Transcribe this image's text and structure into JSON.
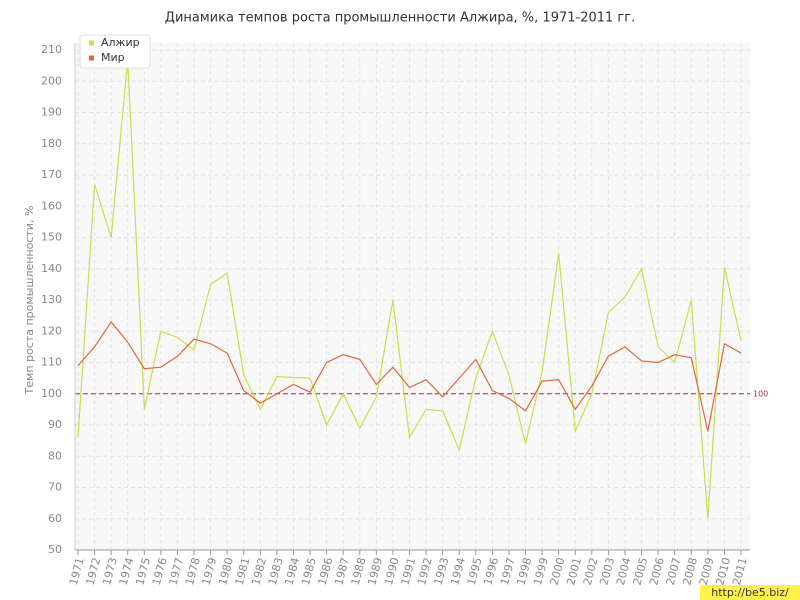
{
  "chart_data": {
    "type": "line",
    "title": "Динамика темпов роста промышленности Алжира, %, 1971-2011 гг.",
    "y_label": "Темп роста промышленности, %",
    "categories": [
      "1971",
      "1972",
      "1973",
      "1974",
      "1975",
      "1976",
      "1977",
      "1978",
      "1979",
      "1980",
      "1981",
      "1982",
      "1983",
      "1984",
      "1985",
      "1986",
      "1987",
      "1988",
      "1989",
      "1990",
      "1991",
      "1992",
      "1993",
      "1994",
      "1995",
      "1996",
      "1997",
      "1998",
      "1999",
      "2000",
      "2001",
      "2002",
      "2003",
      "2004",
      "2005",
      "2006",
      "2007",
      "2008",
      "2009",
      "2010",
      "2011"
    ],
    "series": [
      {
        "name": "Алжир",
        "color": "#c5e04e",
        "values": [
          86,
          167,
          150,
          207,
          95,
          120,
          118,
          114,
          135,
          138.5,
          106,
          95,
          105.5,
          105.2,
          105,
          90,
          100,
          89,
          99,
          130,
          86,
          95,
          94.5,
          82,
          105,
          120,
          106,
          84,
          107,
          145,
          88,
          100,
          126,
          131,
          140,
          115,
          110,
          130,
          60,
          140.5,
          117
        ]
      },
      {
        "name": "Мир",
        "color": "#e0683c",
        "values": [
          109,
          115,
          123,
          116.5,
          108,
          108.5,
          112,
          117.5,
          116,
          113,
          101,
          97,
          100,
          103,
          100.5,
          110,
          112.5,
          111,
          103,
          108.5,
          102,
          104.5,
          99,
          105,
          111,
          101,
          98.5,
          94.5,
          104,
          104.5,
          95,
          102.5,
          112,
          115,
          110.5,
          110,
          112.5,
          111.5,
          88,
          116,
          113
        ]
      }
    ],
    "ylim": [
      50,
      210
    ],
    "yticks": [
      50,
      60,
      70,
      80,
      90,
      100,
      110,
      120,
      130,
      140,
      150,
      160,
      170,
      180,
      190,
      200,
      210
    ],
    "grid": true,
    "reference_line": {
      "value": 100,
      "color": "#a0304a"
    },
    "legend": "top-left",
    "watermark": "http://be5.biz/"
  }
}
